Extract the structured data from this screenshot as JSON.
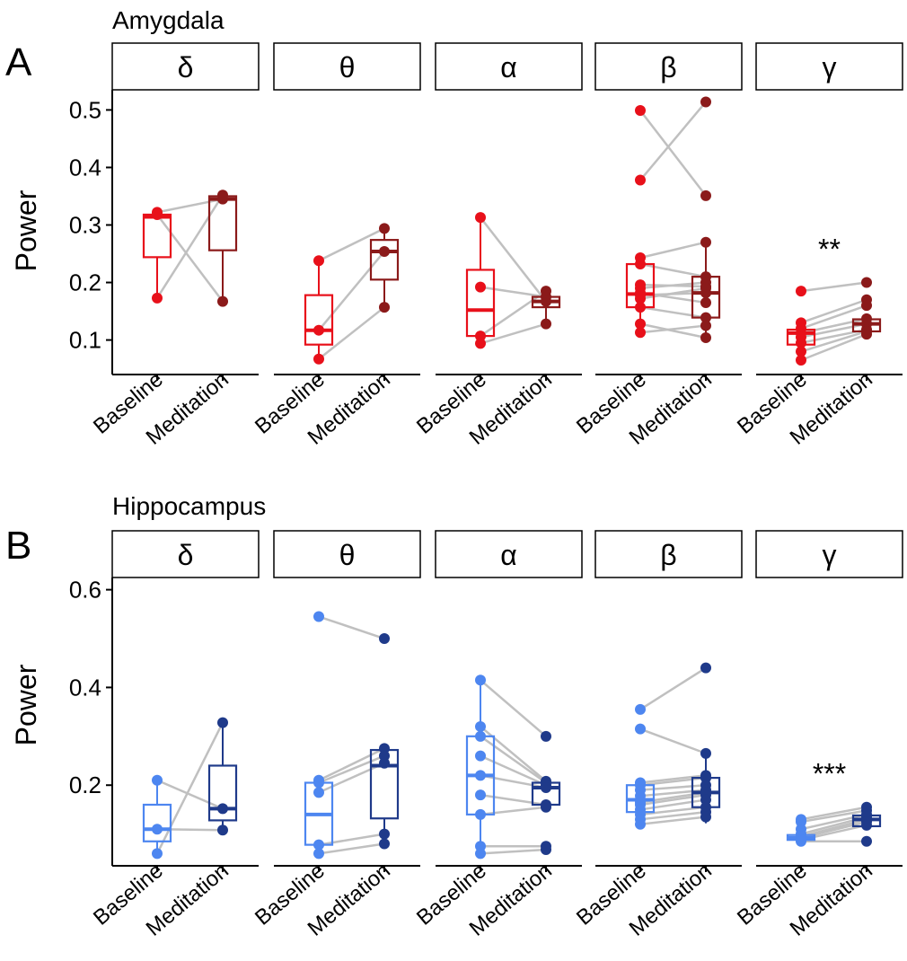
{
  "chart_data": [
    {
      "type": "box",
      "panel_letter": "A",
      "title": "Amygdala",
      "ylabel": "Power",
      "ylim": [
        0.04,
        0.535
      ],
      "yticks": [
        0.1,
        0.2,
        0.3,
        0.4,
        0.5
      ],
      "ytick_labels": [
        "0.1",
        "0.2",
        "0.3",
        "0.4",
        "0.5"
      ],
      "categories": [
        "Baseline",
        "Meditation"
      ],
      "colors": {
        "Baseline": "#e8101a",
        "Meditation": "#8b1a1a"
      },
      "facets": [
        {
          "label": "δ",
          "annotation": "",
          "box": {
            "Baseline": [
              0.173,
              0.244,
              0.314,
              0.318,
              0.322
            ],
            "Meditation": [
              0.167,
              0.256,
              0.345,
              0.35,
              0.352
            ]
          },
          "pairs": [
            [
              0.322,
              0.345
            ],
            [
              0.318,
              0.167
            ],
            [
              0.173,
              0.352
            ]
          ]
        },
        {
          "label": "θ",
          "annotation": "",
          "box": {
            "Baseline": [
              0.067,
              0.092,
              0.117,
              0.178,
              0.238
            ],
            "Meditation": [
              0.157,
              0.205,
              0.254,
              0.274,
              0.294
            ]
          },
          "pairs": [
            [
              0.067,
              0.157
            ],
            [
              0.117,
              0.254
            ],
            [
              0.238,
              0.294
            ]
          ]
        },
        {
          "label": "α",
          "annotation": "",
          "box": {
            "Baseline": [
              0.094,
              0.107,
              0.152,
              0.222,
              0.313
            ],
            "Meditation": [
              0.128,
              0.157,
              0.167,
              0.175,
              0.185
            ]
          },
          "pairs": [
            [
              0.094,
              0.128
            ],
            [
              0.107,
              0.185
            ],
            [
              0.192,
              0.175
            ],
            [
              0.313,
              0.167
            ]
          ]
        },
        {
          "label": "β",
          "annotation": "",
          "box": {
            "Baseline": [
              0.113,
              0.157,
              0.18,
              0.232,
              0.243
            ],
            "Meditation": [
              0.104,
              0.139,
              0.182,
              0.21,
              0.27
            ]
          },
          "pairs": [
            [
              0.499,
              0.351
            ],
            [
              0.378,
              0.514
            ],
            [
              0.243,
              0.27
            ],
            [
              0.232,
              0.21
            ],
            [
              0.196,
              0.193
            ],
            [
              0.19,
              0.2
            ],
            [
              0.182,
              0.165
            ],
            [
              0.178,
              0.182
            ],
            [
              0.172,
              0.19
            ],
            [
              0.157,
              0.139
            ],
            [
              0.128,
              0.104
            ],
            [
              0.113,
              0.125
            ]
          ]
        },
        {
          "label": "γ",
          "annotation": "**",
          "box": {
            "Baseline": [
              0.065,
              0.092,
              0.112,
              0.118,
              0.132
            ],
            "Meditation": [
              0.11,
              0.115,
              0.128,
              0.136,
              0.137
            ]
          },
          "pairs": [
            [
              0.185,
              0.2
            ],
            [
              0.13,
              0.17
            ],
            [
              0.12,
              0.16
            ],
            [
              0.112,
              0.137
            ],
            [
              0.105,
              0.128
            ],
            [
              0.095,
              0.118
            ],
            [
              0.08,
              0.115
            ],
            [
              0.065,
              0.11
            ]
          ]
        }
      ]
    },
    {
      "type": "box",
      "panel_letter": "B",
      "title": "Hippocampus",
      "ylabel": "Power",
      "ylim": [
        0.035,
        0.625
      ],
      "yticks": [
        0.2,
        0.4,
        0.6
      ],
      "ytick_labels": [
        "0.2",
        "0.4",
        "0.6"
      ],
      "categories": [
        "Baseline",
        "Meditation"
      ],
      "colors": {
        "Baseline": "#4d86f0",
        "Meditation": "#1f3a8a"
      },
      "facets": [
        {
          "label": "δ",
          "annotation": "",
          "box": {
            "Baseline": [
              0.06,
              0.085,
              0.11,
              0.16,
              0.21
            ],
            "Meditation": [
              0.108,
              0.128,
              0.152,
              0.24,
              0.328
            ]
          },
          "pairs": [
            [
              0.06,
              0.328
            ],
            [
              0.11,
              0.108
            ],
            [
              0.21,
              0.152
            ]
          ]
        },
        {
          "label": "θ",
          "annotation": "",
          "box": {
            "Baseline": [
              0.06,
              0.078,
              0.14,
              0.205,
              0.21
            ],
            "Meditation": [
              0.08,
              0.132,
              0.24,
              0.272,
              0.275
            ]
          },
          "pairs": [
            [
              0.545,
              0.5
            ],
            [
              0.21,
              0.275
            ],
            [
              0.205,
              0.26
            ],
            [
              0.185,
              0.245
            ],
            [
              0.078,
              0.1
            ],
            [
              0.06,
              0.08
            ]
          ]
        },
        {
          "label": "α",
          "annotation": "",
          "box": {
            "Baseline": [
              0.06,
              0.14,
              0.22,
              0.3,
              0.415
            ],
            "Meditation": [
              0.155,
              0.16,
              0.195,
              0.205,
              0.208
            ]
          },
          "pairs": [
            [
              0.415,
              0.3
            ],
            [
              0.32,
              0.208
            ],
            [
              0.3,
              0.205
            ],
            [
              0.26,
              0.2
            ],
            [
              0.22,
              0.195
            ],
            [
              0.18,
              0.16
            ],
            [
              0.14,
              0.155
            ],
            [
              0.075,
              0.075
            ],
            [
              0.06,
              0.068
            ]
          ]
        },
        {
          "label": "β",
          "annotation": "",
          "box": {
            "Baseline": [
              0.12,
              0.145,
              0.17,
              0.2,
              0.205
            ],
            "Meditation": [
              0.122,
              0.155,
              0.185,
              0.215,
              0.265
            ]
          },
          "pairs": [
            [
              0.355,
              0.44
            ],
            [
              0.315,
              0.265
            ],
            [
              0.205,
              0.22
            ],
            [
              0.2,
              0.215
            ],
            [
              0.19,
              0.2
            ],
            [
              0.178,
              0.19
            ],
            [
              0.165,
              0.185
            ],
            [
              0.16,
              0.18
            ],
            [
              0.15,
              0.17
            ],
            [
              0.14,
              0.155
            ],
            [
              0.13,
              0.145
            ],
            [
              0.12,
              0.135
            ]
          ]
        },
        {
          "label": "γ",
          "annotation": "***",
          "box": {
            "Baseline": [
              0.088,
              0.088,
              0.092,
              0.098,
              0.098
            ],
            "Meditation": [
              0.115,
              0.116,
              0.13,
              0.138,
              0.14
            ]
          },
          "pairs": [
            [
              0.13,
              0.155
            ],
            [
              0.125,
              0.148
            ],
            [
              0.11,
              0.14
            ],
            [
              0.1,
              0.135
            ],
            [
              0.095,
              0.13
            ],
            [
              0.092,
              0.125
            ],
            [
              0.088,
              0.118
            ],
            [
              0.085,
              0.085
            ]
          ]
        }
      ]
    }
  ]
}
